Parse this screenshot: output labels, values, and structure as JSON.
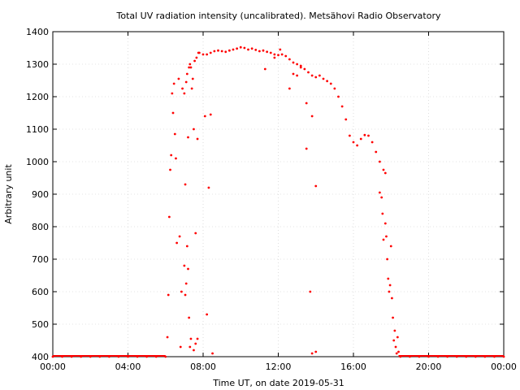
{
  "chart_data": {
    "type": "scatter",
    "title": "Total UV radiation intensity (uncalibrated). Metsähovi Radio Observatory",
    "xlabel": "Time UT, on date 2019-05-31",
    "ylabel": "Arbitrary unit",
    "xlim": [
      0,
      24
    ],
    "ylim": [
      400,
      1400
    ],
    "x_ticks": [
      0,
      4,
      8,
      12,
      16,
      20,
      24
    ],
    "x_tick_labels": [
      "00:00",
      "04:00",
      "08:00",
      "12:00",
      "16:00",
      "20:00",
      "00:00"
    ],
    "y_ticks": [
      400,
      500,
      600,
      700,
      800,
      900,
      1000,
      1100,
      1200,
      1300,
      1400
    ],
    "y_tick_labels": [
      "400",
      "500",
      "600",
      "700",
      "800",
      "900",
      "1000",
      "1100",
      "1200",
      "1300",
      "1400"
    ],
    "grid": true,
    "marker_color": "#ff0000",
    "series": [
      {
        "x_unit": "hours UT",
        "points": [
          [
            6.0,
            400
          ],
          [
            6.1,
            460
          ],
          [
            6.15,
            590
          ],
          [
            6.2,
            830
          ],
          [
            6.25,
            975
          ],
          [
            6.3,
            1020
          ],
          [
            6.35,
            1210
          ],
          [
            6.4,
            1150
          ],
          [
            6.45,
            1240
          ],
          [
            6.5,
            1085
          ],
          [
            6.55,
            1010
          ],
          [
            6.6,
            750
          ],
          [
            6.7,
            1255
          ],
          [
            6.75,
            770
          ],
          [
            6.8,
            430
          ],
          [
            6.85,
            600
          ],
          [
            6.9,
            1225
          ],
          [
            7.0,
            1210
          ],
          [
            7.05,
            930
          ],
          [
            7.1,
            1245
          ],
          [
            7.15,
            1270
          ],
          [
            7.2,
            1075
          ],
          [
            7.25,
            1290
          ],
          [
            7.3,
            1300
          ],
          [
            7.35,
            1290
          ],
          [
            7.4,
            1225
          ],
          [
            7.45,
            1255
          ],
          [
            7.5,
            1100
          ],
          [
            7.55,
            1310
          ],
          [
            7.6,
            780
          ],
          [
            7.65,
            1320
          ],
          [
            7.7,
            1070
          ],
          [
            7.75,
            1335
          ],
          [
            7.0,
            680
          ],
          [
            7.05,
            590
          ],
          [
            7.1,
            625
          ],
          [
            7.15,
            740
          ],
          [
            7.2,
            670
          ],
          [
            7.25,
            520
          ],
          [
            7.3,
            430
          ],
          [
            7.35,
            455
          ],
          [
            7.5,
            420
          ],
          [
            7.6,
            440
          ],
          [
            7.7,
            455
          ],
          [
            8.1,
            1140
          ],
          [
            8.3,
            920
          ],
          [
            8.4,
            1145
          ],
          [
            8.2,
            530
          ],
          [
            8.5,
            410
          ],
          [
            7.8,
            1335
          ],
          [
            8.0,
            1330
          ],
          [
            8.2,
            1330
          ],
          [
            8.4,
            1335
          ],
          [
            8.6,
            1340
          ],
          [
            8.8,
            1342
          ],
          [
            9.0,
            1340
          ],
          [
            9.2,
            1338
          ],
          [
            9.4,
            1342
          ],
          [
            9.6,
            1345
          ],
          [
            9.8,
            1348
          ],
          [
            10.0,
            1352
          ],
          [
            10.2,
            1350
          ],
          [
            10.4,
            1345
          ],
          [
            10.6,
            1348
          ],
          [
            10.8,
            1344
          ],
          [
            11.0,
            1340
          ],
          [
            11.2,
            1342
          ],
          [
            11.4,
            1338
          ],
          [
            11.6,
            1335
          ],
          [
            11.8,
            1330
          ],
          [
            12.0,
            1328
          ],
          [
            12.2,
            1330
          ],
          [
            12.4,
            1325
          ],
          [
            12.6,
            1315
          ],
          [
            12.8,
            1305
          ],
          [
            13.0,
            1300
          ],
          [
            13.2,
            1295
          ],
          [
            13.4,
            1285
          ],
          [
            13.6,
            1275
          ],
          [
            13.8,
            1265
          ],
          [
            14.0,
            1260
          ],
          [
            14.2,
            1265
          ],
          [
            14.4,
            1255
          ],
          [
            14.6,
            1248
          ],
          [
            14.8,
            1240
          ],
          [
            15.0,
            1225
          ],
          [
            15.2,
            1200
          ],
          [
            15.4,
            1170
          ],
          [
            15.6,
            1130
          ],
          [
            15.8,
            1080
          ],
          [
            16.0,
            1060
          ],
          [
            16.2,
            1050
          ],
          [
            16.4,
            1070
          ],
          [
            16.6,
            1082
          ],
          [
            16.8,
            1080
          ],
          [
            17.0,
            1060
          ],
          [
            17.2,
            1030
          ],
          [
            17.4,
            1000
          ],
          [
            17.6,
            975
          ],
          [
            17.7,
            965
          ],
          [
            11.3,
            1285
          ],
          [
            11.8,
            1320
          ],
          [
            12.1,
            1345
          ],
          [
            12.6,
            1225
          ],
          [
            12.8,
            1270
          ],
          [
            13.0,
            1265
          ],
          [
            13.2,
            1290
          ],
          [
            13.5,
            1180
          ],
          [
            13.8,
            1140
          ],
          [
            13.5,
            1040
          ],
          [
            14.0,
            925
          ],
          [
            13.7,
            600
          ],
          [
            13.8,
            410
          ],
          [
            14.0,
            415
          ],
          [
            17.4,
            905
          ],
          [
            17.5,
            890
          ],
          [
            17.55,
            840
          ],
          [
            17.6,
            760
          ],
          [
            17.7,
            810
          ],
          [
            17.75,
            770
          ],
          [
            17.8,
            700
          ],
          [
            17.85,
            640
          ],
          [
            17.9,
            600
          ],
          [
            17.95,
            620
          ],
          [
            18.0,
            740
          ],
          [
            18.05,
            580
          ],
          [
            18.1,
            520
          ],
          [
            18.15,
            450
          ],
          [
            18.2,
            480
          ],
          [
            18.25,
            430
          ],
          [
            18.3,
            410
          ],
          [
            18.35,
            460
          ],
          [
            18.4,
            415
          ],
          [
            0.0,
            400
          ],
          [
            0.5,
            400
          ],
          [
            1.0,
            400
          ],
          [
            1.5,
            400
          ],
          [
            2.0,
            400
          ],
          [
            2.5,
            400
          ],
          [
            3.0,
            400
          ],
          [
            3.5,
            400
          ],
          [
            4.0,
            400
          ],
          [
            4.5,
            400
          ],
          [
            5.0,
            400
          ],
          [
            5.5,
            400
          ],
          [
            18.5,
            400
          ],
          [
            19.0,
            400
          ],
          [
            19.5,
            400
          ],
          [
            20.0,
            400
          ],
          [
            20.5,
            400
          ],
          [
            21.0,
            400
          ],
          [
            21.5,
            400
          ],
          [
            22.0,
            400
          ],
          [
            22.5,
            400
          ],
          [
            23.0,
            400
          ],
          [
            23.5,
            400
          ],
          [
            24.0,
            400
          ]
        ]
      }
    ]
  }
}
